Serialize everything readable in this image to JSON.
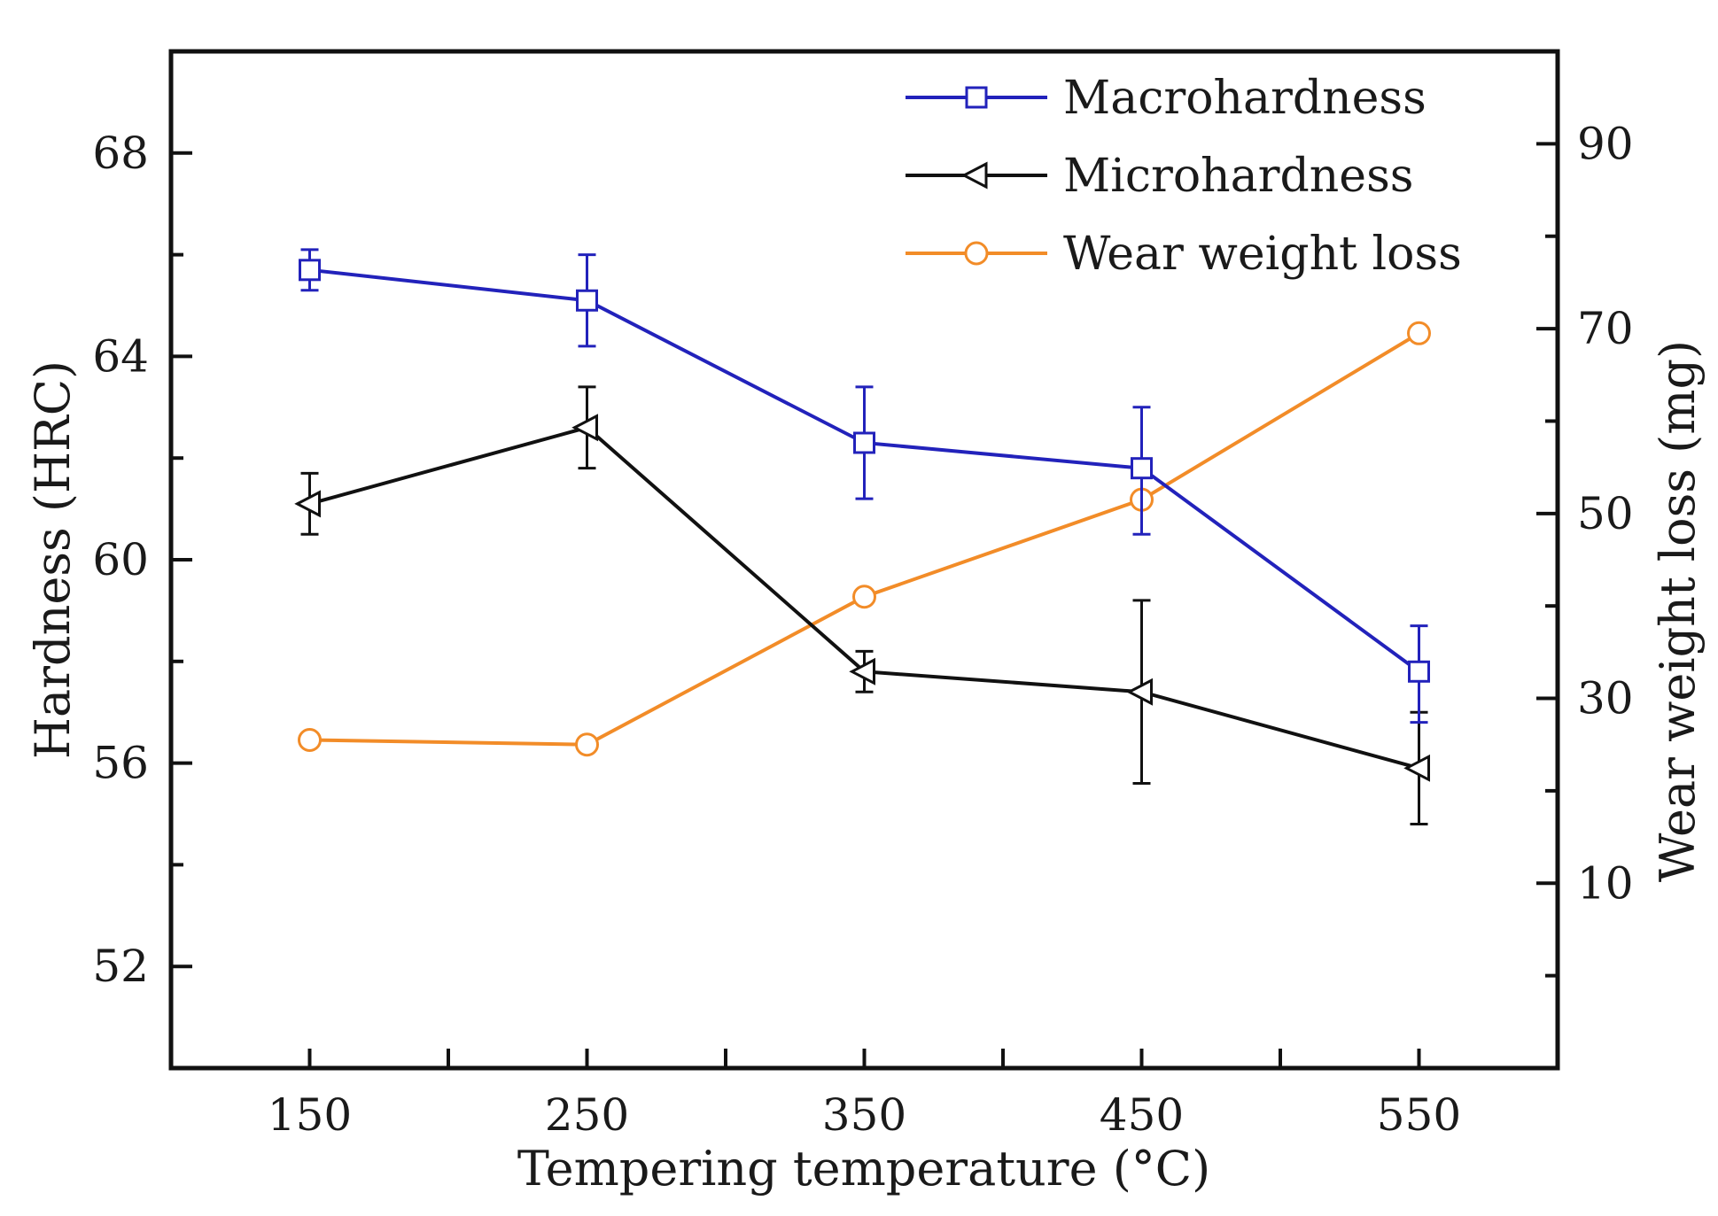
{
  "chart_data": {
    "type": "line",
    "title": "",
    "xlabel": "Tempering temperature (°C)",
    "ylabel": "Hardness (HRC)",
    "y2label": "Wear weight loss (mg)",
    "x": [
      150,
      250,
      350,
      450,
      550
    ],
    "x_ticks": [
      "150",
      "250",
      "350",
      "450",
      "550"
    ],
    "xlim": [
      100,
      600
    ],
    "ylim": [
      50,
      70
    ],
    "y_ticks": [
      "52",
      "56",
      "60",
      "64",
      "68"
    ],
    "y2lim": [
      -10,
      100
    ],
    "y2_ticks": [
      "10",
      "30",
      "50",
      "70",
      "90"
    ],
    "legend_position": "top-right",
    "grid": false,
    "series": [
      {
        "name": "Macrohardness",
        "axis": "left",
        "marker": "square",
        "color": "#2222bb",
        "values": [
          65.7,
          65.1,
          62.3,
          61.8,
          57.8
        ],
        "err_low": [
          65.3,
          64.2,
          61.2,
          60.5,
          56.8
        ],
        "err_high": [
          66.1,
          66.0,
          63.4,
          63.0,
          58.7
        ]
      },
      {
        "name": "Microhardness",
        "axis": "left",
        "marker": "triangle-left",
        "color": "#111111",
        "values": [
          61.1,
          62.6,
          57.8,
          57.4,
          55.9
        ],
        "err_low": [
          60.5,
          61.8,
          57.4,
          55.6,
          54.8
        ],
        "err_high": [
          61.7,
          63.4,
          58.2,
          59.2,
          57.0
        ]
      },
      {
        "name": "Wear weight loss",
        "axis": "right",
        "marker": "circle",
        "color": "#f28c28",
        "values": [
          25.5,
          25.0,
          41.0,
          51.5,
          69.5
        ]
      }
    ]
  }
}
